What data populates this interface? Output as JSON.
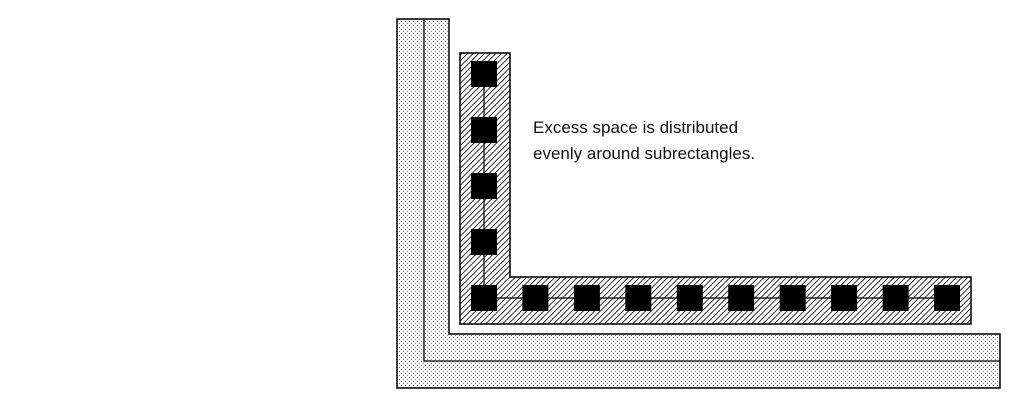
{
  "annotation": {
    "line1": "Excess space is distributed",
    "line2": "evenly around subrectangles."
  },
  "diagram": {
    "vertical_contacts": 5,
    "horizontal_contacts": 10,
    "colors": {
      "ink": "#000000",
      "background": "#ffffff",
      "dot_fill": "#555555",
      "hatch": "#000000"
    }
  }
}
